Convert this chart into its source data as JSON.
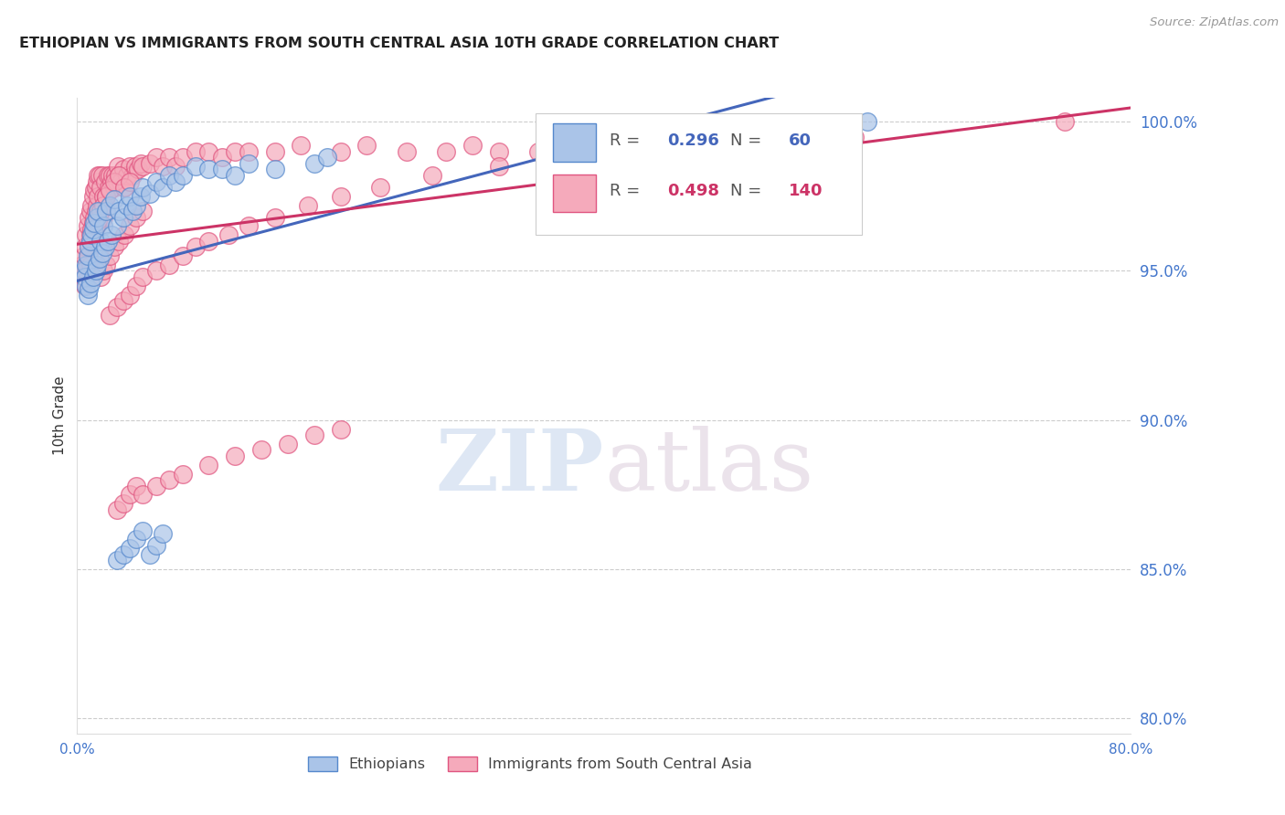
{
  "title": "ETHIOPIAN VS IMMIGRANTS FROM SOUTH CENTRAL ASIA 10TH GRADE CORRELATION CHART",
  "source": "Source: ZipAtlas.com",
  "ylabel": "10th Grade",
  "xlim": [
    0.0,
    0.8
  ],
  "ylim": [
    0.795,
    1.008
  ],
  "xticks": [
    0.0,
    0.1,
    0.2,
    0.3,
    0.4,
    0.5,
    0.6,
    0.7,
    0.8
  ],
  "xtick_labels": [
    "0.0%",
    "",
    "",
    "",
    "",
    "",
    "",
    "",
    "80.0%"
  ],
  "yticks": [
    0.8,
    0.85,
    0.9,
    0.95,
    1.0
  ],
  "ytick_labels": [
    "80.0%",
    "85.0%",
    "90.0%",
    "95.0%",
    "100.0%"
  ],
  "blue_color": "#aac4e8",
  "pink_color": "#f5aabb",
  "blue_edge_color": "#5588cc",
  "pink_edge_color": "#e05580",
  "blue_line_color": "#4466bb",
  "pink_line_color": "#cc3366",
  "legend_blue_r": "0.296",
  "legend_blue_n": "60",
  "legend_pink_r": "0.498",
  "legend_pink_n": "140",
  "legend_label_blue": "Ethiopians",
  "legend_label_pink": "Immigrants from South Central Asia",
  "watermark_zip": "ZIP",
  "watermark_atlas": "atlas",
  "background_color": "#ffffff",
  "grid_color": "#cccccc",
  "axis_tick_color": "#4477CC",
  "blue_scatter_x": [
    0.005,
    0.006,
    0.007,
    0.007,
    0.008,
    0.008,
    0.009,
    0.009,
    0.01,
    0.01,
    0.011,
    0.012,
    0.012,
    0.013,
    0.014,
    0.015,
    0.015,
    0.016,
    0.017,
    0.018,
    0.019,
    0.02,
    0.021,
    0.022,
    0.023,
    0.025,
    0.026,
    0.028,
    0.03,
    0.032,
    0.035,
    0.038,
    0.04,
    0.042,
    0.045,
    0.048,
    0.05,
    0.055,
    0.06,
    0.065,
    0.07,
    0.075,
    0.08,
    0.09,
    0.1,
    0.11,
    0.12,
    0.13,
    0.15,
    0.18,
    0.03,
    0.035,
    0.04,
    0.045,
    0.05,
    0.055,
    0.06,
    0.065,
    0.19,
    0.6
  ],
  "blue_scatter_y": [
    0.95,
    0.948,
    0.952,
    0.945,
    0.955,
    0.942,
    0.958,
    0.944,
    0.96,
    0.946,
    0.962,
    0.964,
    0.948,
    0.966,
    0.95,
    0.968,
    0.952,
    0.97,
    0.954,
    0.96,
    0.956,
    0.965,
    0.958,
    0.97,
    0.96,
    0.972,
    0.962,
    0.974,
    0.965,
    0.97,
    0.968,
    0.972,
    0.975,
    0.97,
    0.972,
    0.975,
    0.978,
    0.976,
    0.98,
    0.978,
    0.982,
    0.98,
    0.982,
    0.985,
    0.984,
    0.984,
    0.982,
    0.986,
    0.984,
    0.986,
    0.853,
    0.855,
    0.857,
    0.86,
    0.863,
    0.855,
    0.858,
    0.862,
    0.988,
    1.0
  ],
  "pink_scatter_x": [
    0.004,
    0.005,
    0.005,
    0.006,
    0.006,
    0.007,
    0.007,
    0.008,
    0.008,
    0.009,
    0.009,
    0.01,
    0.01,
    0.01,
    0.011,
    0.011,
    0.012,
    0.012,
    0.013,
    0.013,
    0.014,
    0.014,
    0.015,
    0.015,
    0.015,
    0.016,
    0.016,
    0.017,
    0.018,
    0.018,
    0.019,
    0.02,
    0.02,
    0.021,
    0.022,
    0.023,
    0.024,
    0.025,
    0.026,
    0.027,
    0.028,
    0.029,
    0.03,
    0.031,
    0.032,
    0.033,
    0.035,
    0.036,
    0.038,
    0.04,
    0.042,
    0.044,
    0.046,
    0.048,
    0.05,
    0.055,
    0.06,
    0.065,
    0.07,
    0.075,
    0.08,
    0.09,
    0.1,
    0.11,
    0.12,
    0.13,
    0.15,
    0.17,
    0.2,
    0.22,
    0.25,
    0.28,
    0.3,
    0.32,
    0.35,
    0.38,
    0.4,
    0.42,
    0.45,
    0.48,
    0.018,
    0.02,
    0.022,
    0.025,
    0.028,
    0.032,
    0.036,
    0.04,
    0.045,
    0.05,
    0.03,
    0.035,
    0.04,
    0.045,
    0.05,
    0.06,
    0.07,
    0.08,
    0.1,
    0.12,
    0.14,
    0.16,
    0.18,
    0.2,
    0.01,
    0.012,
    0.014,
    0.016,
    0.018,
    0.02,
    0.022,
    0.025,
    0.028,
    0.032,
    0.036,
    0.04,
    0.025,
    0.03,
    0.035,
    0.04,
    0.045,
    0.05,
    0.06,
    0.07,
    0.08,
    0.09,
    0.1,
    0.115,
    0.13,
    0.15,
    0.175,
    0.2,
    0.23,
    0.27,
    0.32,
    0.38,
    0.44,
    0.51,
    0.59,
    0.75
  ],
  "pink_scatter_y": [
    0.952,
    0.955,
    0.948,
    0.958,
    0.945,
    0.962,
    0.95,
    0.965,
    0.952,
    0.968,
    0.955,
    0.97,
    0.962,
    0.952,
    0.972,
    0.964,
    0.975,
    0.966,
    0.977,
    0.968,
    0.978,
    0.97,
    0.98,
    0.972,
    0.965,
    0.982,
    0.975,
    0.982,
    0.978,
    0.97,
    0.982,
    0.975,
    0.968,
    0.98,
    0.975,
    0.982,
    0.978,
    0.982,
    0.98,
    0.982,
    0.978,
    0.982,
    0.98,
    0.985,
    0.982,
    0.98,
    0.984,
    0.978,
    0.982,
    0.985,
    0.982,
    0.985,
    0.984,
    0.986,
    0.985,
    0.986,
    0.988,
    0.985,
    0.988,
    0.985,
    0.988,
    0.99,
    0.99,
    0.988,
    0.99,
    0.99,
    0.99,
    0.992,
    0.99,
    0.992,
    0.99,
    0.99,
    0.992,
    0.99,
    0.99,
    0.99,
    0.992,
    0.988,
    0.988,
    0.99,
    0.948,
    0.95,
    0.952,
    0.955,
    0.958,
    0.96,
    0.962,
    0.965,
    0.968,
    0.97,
    0.87,
    0.872,
    0.875,
    0.878,
    0.875,
    0.878,
    0.88,
    0.882,
    0.885,
    0.888,
    0.89,
    0.892,
    0.895,
    0.897,
    0.96,
    0.962,
    0.965,
    0.967,
    0.97,
    0.972,
    0.975,
    0.977,
    0.98,
    0.982,
    0.978,
    0.98,
    0.935,
    0.938,
    0.94,
    0.942,
    0.945,
    0.948,
    0.95,
    0.952,
    0.955,
    0.958,
    0.96,
    0.962,
    0.965,
    0.968,
    0.972,
    0.975,
    0.978,
    0.982,
    0.985,
    0.988,
    0.99,
    0.992,
    0.995,
    1.0
  ]
}
